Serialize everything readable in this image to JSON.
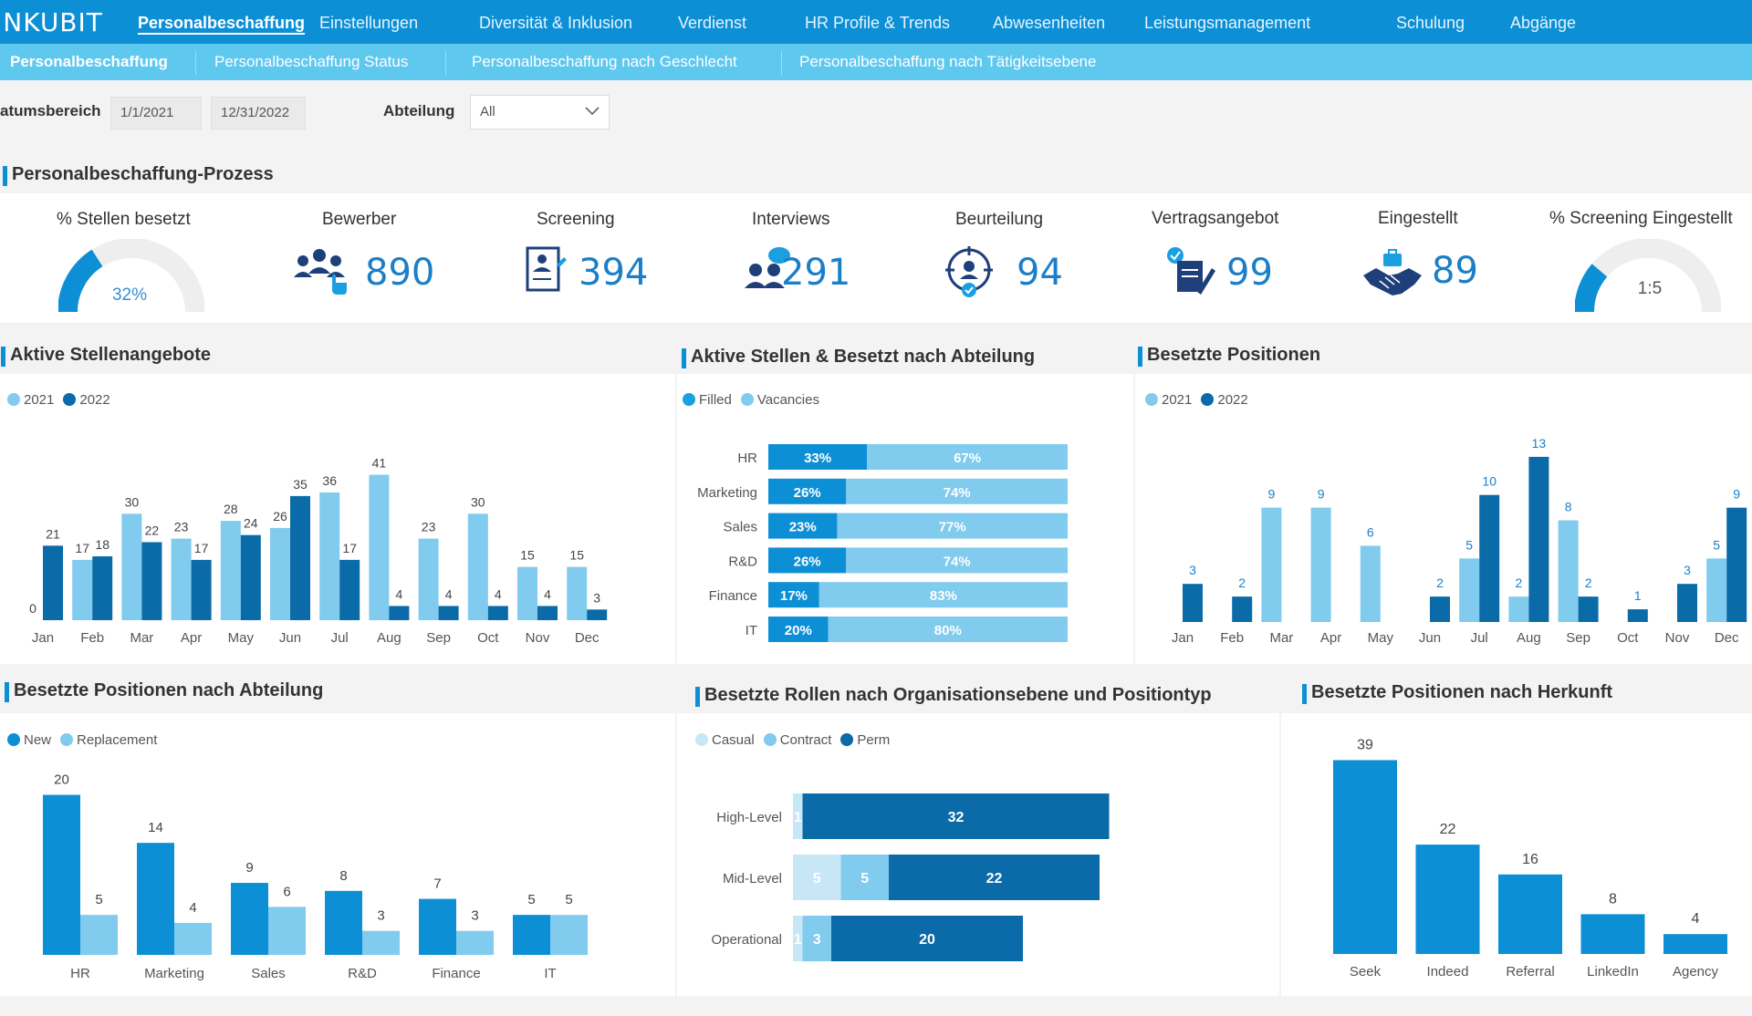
{
  "colors": {
    "primary": "#0d8fd6",
    "dark": "#0b6aa8",
    "mid": "#1a9fe0",
    "light": "#80cbee",
    "pale": "#c7e6f6",
    "navBar": "#0d8fd6",
    "subBar": "#5ec8ef"
  },
  "header": {
    "logo": "INKUBIT",
    "nav": [
      "Personalbeschaffung",
      "Einstellungen",
      "Diversität & Inklusion",
      "Verdienst",
      "HR Profile & Trends",
      "Abwesenheiten",
      "Leistungsmanagement",
      "Schulung",
      "Abgänge"
    ]
  },
  "subnav": [
    "Personalbeschaffung",
    "Personalbeschaffung Status",
    "Personalbeschaffung nach Geschlecht",
    "Personalbeschaffung nach Tätigkeitsebene"
  ],
  "filters": {
    "date_label": "atumsbereich",
    "date_from": "1/1/2021",
    "date_to": "12/31/2022",
    "dept_label": "Abteilung",
    "dept_value": "All"
  },
  "process": {
    "title": "Personalbeschaffung-Prozess",
    "fill_label": "% Stellen besetzt",
    "fill_pct": 32,
    "fill_text": "32%",
    "bewerber_label": "Bewerber",
    "bewerber": "890",
    "screening_label": "Screening",
    "screening": "394",
    "interviews_label": "Interviews",
    "interviews": "291",
    "beurteilung_label": "Beurteilung",
    "beurteilung": "94",
    "vertrag_label": "Vertragsangebot",
    "vertrag": "99",
    "eingestellt_label": "Eingestellt",
    "eingestellt": "89",
    "ratio_label": "% Screening Eingestellt",
    "ratio_text": "1:5",
    "ratio_pct": 22.6
  },
  "chart_data": [
    {
      "id": "aktive",
      "type": "bar",
      "title": "Aktive Stellenangebote",
      "legend": [
        "2021",
        "2022"
      ],
      "categories": [
        "Jan",
        "Feb",
        "Mar",
        "Apr",
        "May",
        "Jun",
        "Jul",
        "Aug",
        "Sep",
        "Oct",
        "Nov",
        "Dec"
      ],
      "series": [
        {
          "name": "2021",
          "values": [
            0,
            17,
            30,
            23,
            28,
            26,
            36,
            41,
            23,
            30,
            15,
            15
          ]
        },
        {
          "name": "2022",
          "values": [
            21,
            18,
            22,
            17,
            24,
            35,
            17,
            4,
            4,
            4,
            4,
            3
          ]
        }
      ],
      "ylim": [
        0,
        45
      ]
    },
    {
      "id": "abteilung",
      "type": "bar",
      "title": "Aktive Stellen & Besetzt nach Abteilung",
      "legend": [
        "Filled",
        "Vacancies"
      ],
      "categories": [
        "HR",
        "Marketing",
        "Sales",
        "R&D",
        "Finance",
        "IT"
      ],
      "series": [
        {
          "name": "Filled",
          "values": [
            33,
            26,
            23,
            26,
            17,
            20
          ]
        },
        {
          "name": "Vacancies",
          "values": [
            67,
            74,
            77,
            74,
            83,
            80
          ]
        }
      ],
      "unit": "%"
    },
    {
      "id": "besetzt",
      "type": "bar",
      "title": "Besetzte Positionen",
      "legend": [
        "2021",
        "2022"
      ],
      "categories": [
        "Jan",
        "Feb",
        "Mar",
        "Apr",
        "May",
        "Jun",
        "Jul",
        "Aug",
        "Sep",
        "Oct",
        "Nov",
        "Dec"
      ],
      "series": [
        {
          "name": "2021",
          "values": [
            null,
            null,
            9,
            9,
            6,
            null,
            5,
            2,
            8,
            null,
            null,
            5
          ]
        },
        {
          "name": "2022",
          "values": [
            3,
            2,
            null,
            null,
            null,
            2,
            10,
            13,
            2,
            1,
            3,
            9
          ]
        }
      ],
      "ylim": [
        0,
        14
      ]
    },
    {
      "id": "nach_abteilung",
      "type": "bar",
      "title": "Besetzte Positionen nach Abteilung",
      "legend": [
        "New",
        "Replacement"
      ],
      "categories": [
        "HR",
        "Marketing",
        "Sales",
        "R&D",
        "Finance",
        "IT"
      ],
      "series": [
        {
          "name": "New",
          "values": [
            20,
            14,
            9,
            8,
            7,
            5
          ]
        },
        {
          "name": "Replacement",
          "values": [
            5,
            4,
            6,
            3,
            3,
            5
          ]
        }
      ],
      "ylim": [
        0,
        22
      ]
    },
    {
      "id": "org",
      "type": "bar",
      "title": "Besetzte Rollen nach Organisationsebene und Positiontyp",
      "legend": [
        "Casual",
        "Contract",
        "Perm"
      ],
      "categories": [
        "High-Level",
        "Mid-Level",
        "Operational"
      ],
      "series": [
        {
          "name": "Casual",
          "values": [
            1,
            5,
            1
          ]
        },
        {
          "name": "Contract",
          "values": [
            0,
            5,
            3
          ]
        },
        {
          "name": "Perm",
          "values": [
            32,
            22,
            20
          ]
        }
      ]
    },
    {
      "id": "herkunft",
      "type": "bar",
      "title": "Besetzte Positionen nach Herkunft",
      "categories": [
        "Seek",
        "Indeed",
        "Referral",
        "LinkedIn",
        "Agency"
      ],
      "values": [
        39,
        22,
        16,
        8,
        4
      ],
      "ylim": [
        0,
        40
      ]
    }
  ]
}
